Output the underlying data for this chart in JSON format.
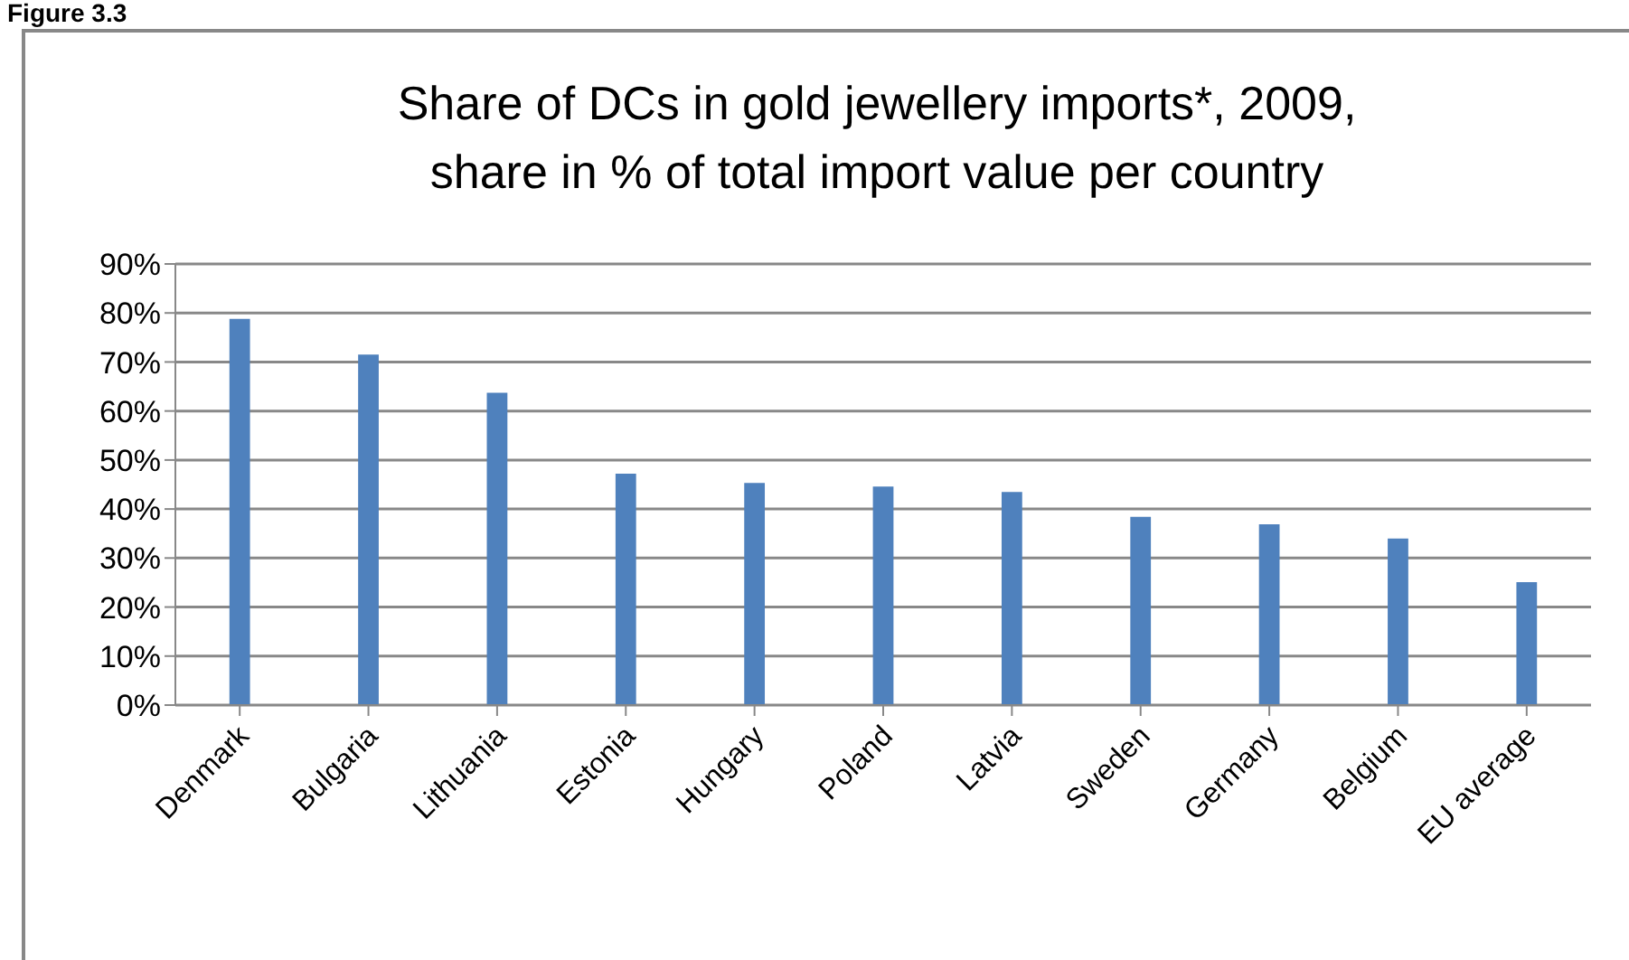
{
  "chart_data": {
    "type": "bar",
    "title": "Share of DCs in gold jewellery imports*, 2009,\nshare in % of total import value per country",
    "annotations": [
      "Figure 3.3"
    ],
    "categories": [
      "Denmark",
      "Bulgaria",
      "Lithuania",
      "Estonia",
      "Hungary",
      "Poland",
      "Latvia",
      "Sweden",
      "Germany",
      "Belgium",
      "EU average"
    ],
    "values": [
      78.8,
      71.5,
      63.7,
      47.2,
      45.3,
      44.6,
      43.5,
      38.4,
      36.9,
      34.0,
      25.1
    ],
    "color": "#4f81bd",
    "ylim": [
      0,
      90
    ],
    "yticks": [
      {
        "value": 0,
        "label": "0%"
      },
      {
        "value": 10,
        "label": "10%"
      },
      {
        "value": 20,
        "label": "20%"
      },
      {
        "value": 30,
        "label": "30%"
      },
      {
        "value": 40,
        "label": "40%"
      },
      {
        "value": 50,
        "label": "50%"
      },
      {
        "value": 60,
        "label": "60%"
      },
      {
        "value": 70,
        "label": "70%"
      },
      {
        "value": 80,
        "label": "80%"
      },
      {
        "value": 90,
        "label": "90%"
      }
    ],
    "grid": "y",
    "legend": false
  }
}
